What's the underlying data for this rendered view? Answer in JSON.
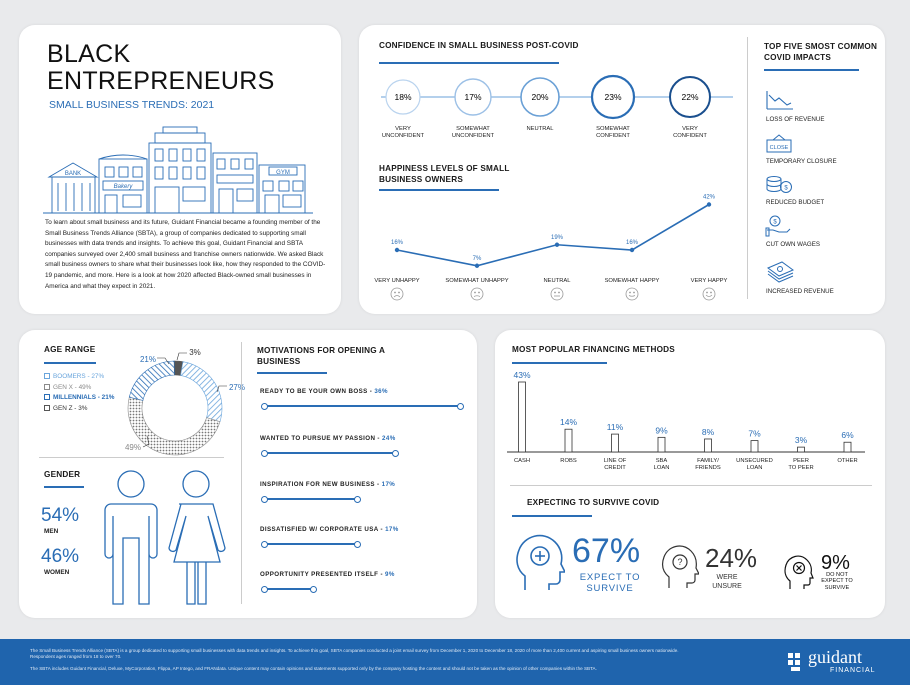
{
  "header": {
    "title_line1": "BLACK",
    "title_line2": "ENTREPRENEURS",
    "subtitle": "SMALL BUSINESS TRENDS: 2021",
    "intro": "To learn about small business and its future, Guidant Financial became a founding member of the Small Business Trends Alliance (SBTA), a group of companies dedicated to supporting small businesses with data trends and insights. To achieve this goal, Guidant Financial and SBTA companies surveyed over 2,400 small business and franchise owners nationwide.    We asked Black small business owners to share what their businesses look like, how they responded to the COVID-19 pandemic, and more. Here is a look at how 2020 affected Black-owned small businesses in America and what they expect in 2021.",
    "illustration_signs": [
      "BANK",
      "Bakery",
      "GYM"
    ]
  },
  "confidence": {
    "title": "CONFIDENCE IN SMALL BUSINESS POST-COVID",
    "items": [
      {
        "value": "18%",
        "label1": "VERY",
        "label2": "UNCONFIDENT"
      },
      {
        "value": "17%",
        "label1": "SOMEWHAT",
        "label2": "UNCONFIDENT"
      },
      {
        "value": "20%",
        "label1": "NEUTRAL",
        "label2": ""
      },
      {
        "value": "23%",
        "label1": "SOMEWHAT",
        "label2": "CONFIDENT"
      },
      {
        "value": "22%",
        "label1": "VERY",
        "label2": "CONFIDENT"
      }
    ]
  },
  "happiness": {
    "title_line1": "HAPPINESS LEVELS OF SMALL",
    "title_line2": "BUSINESS OWNERS"
  },
  "impacts": {
    "title_line1": "TOP FIVE SMOST COMMON",
    "title_line2": "COVID IMPACTS",
    "items": [
      {
        "label": "LOSS OF REVENUE",
        "icon": "declining-chart-icon"
      },
      {
        "label": "TEMPORARY CLOSURE",
        "icon": "close-sign-icon",
        "sign_text": "CLOSE"
      },
      {
        "label": "REDUCED BUDGET",
        "icon": "coins-icon"
      },
      {
        "label": "CUT OWN WAGES",
        "icon": "hand-money-icon"
      },
      {
        "label": "INCREASED REVENUE",
        "icon": "cash-stack-icon"
      }
    ]
  },
  "age": {
    "title": "AGE RANGE",
    "legend": [
      {
        "label": "BOOMERS - 27%",
        "color": "#6aa5dc"
      },
      {
        "label": "GEN X - 49%",
        "color": "#8a8a8a"
      },
      {
        "label": "MILLENNIALS - 21%",
        "color": "#2a6db5"
      },
      {
        "label": "GEN Z - 3%",
        "color": "#555555"
      }
    ]
  },
  "gender": {
    "title": "GENDER",
    "men_value": "54%",
    "men_label": "MEN",
    "women_value": "46%",
    "women_label": "WOMEN"
  },
  "motivations": {
    "title_line1": "MOTIVATIONS FOR OPENING  A",
    "title_line2": "BUSINESS",
    "items": [
      {
        "label": "READY TO BE YOUR OWN BOSS - ",
        "pct": "36%",
        "value": 36
      },
      {
        "label": "WANTED TO PURSUE MY PASSION - ",
        "pct": "24%",
        "value": 24
      },
      {
        "label": "INSPIRATION FOR NEW BUSINESS - ",
        "pct": "17%",
        "value": 17
      },
      {
        "label": "DISSATISFIED W/ CORPORATE USA - ",
        "pct": "17%",
        "value": 17
      },
      {
        "label": "OPPORTUNITY PRESENTED ITSELF - ",
        "pct": "9%",
        "value": 9
      }
    ]
  },
  "financing": {
    "title": "MOST POPULAR FINANCING METHODS"
  },
  "survive": {
    "title": "EXPECTING TO SURVIVE COVID",
    "expect_value": "67%",
    "expect_label1": "EXPECT TO",
    "expect_label2": "SURVIVE",
    "unsure_value": "24%",
    "unsure_label1": "WERE",
    "unsure_label2": "UNSURE",
    "not_value": "9%",
    "not_label1": "DO NOT",
    "not_label2": "EXPECT TO",
    "not_label3": "SURVIVE"
  },
  "footer": {
    "line1": "The Small Business Trends Alliance (SBTA) is a group dedicated to supporting small businesses with data trends and insights. To achieve this goal, SBTA companies conducted a joint email survey from December 1, 2020 to December 18, 2020 of more than 2,400 current and aspiring small business owners nationwide. Respondent ages ranged from 18 to over 70.",
    "line2": "The SBTA includes Guidant Financial, Deluxe, MyCorporation, Flippa, AP Intego, and FRANdata. Unique content may contain opinions and statements supported only by the company hosting the content and should not be taken as the opinion of other companies within the SBTA.",
    "brand": "guidant",
    "brand_sub": "FINANCIAL"
  },
  "chart_data": [
    {
      "type": "line",
      "title": "HAPPINESS LEVELS OF SMALL BUSINESS OWNERS",
      "categories": [
        "VERY UNHAPPY",
        "SOMEWHAT UNHAPPY",
        "NEUTRAL",
        "SOMEWHAT HAPPY",
        "VERY HAPPY"
      ],
      "values": [
        16,
        7,
        19,
        16,
        42
      ],
      "value_labels": [
        "16%",
        "7%",
        "19%",
        "16%",
        "42%"
      ],
      "color": "#2a6db5"
    },
    {
      "type": "bar",
      "title": "MOST POPULAR FINANCING METHODS",
      "categories": [
        [
          "CASH"
        ],
        [
          "ROBS"
        ],
        [
          "LINE OF",
          "CREDIT"
        ],
        [
          "SBA",
          "LOAN"
        ],
        [
          "FAMILY/",
          "FRIENDS"
        ],
        [
          "UNSECURED",
          "LOAN"
        ],
        [
          "PEER",
          "TO PEER"
        ],
        [
          "OTHER"
        ]
      ],
      "values": [
        43,
        14,
        11,
        9,
        8,
        7,
        3,
        6
      ],
      "value_labels": [
        "43%",
        "14%",
        "11%",
        "9%",
        "8%",
        "7%",
        "3%",
        "6%"
      ],
      "ylim": [
        0,
        43
      ]
    },
    {
      "type": "pie",
      "title": "AGE RANGE",
      "labels": [
        "BOOMERS",
        "GEN X",
        "MILLENNIALS",
        "GEN Z"
      ],
      "values": [
        27,
        49,
        21,
        3
      ],
      "value_labels": [
        "27%",
        "49%",
        "21%",
        "3%"
      ]
    }
  ]
}
